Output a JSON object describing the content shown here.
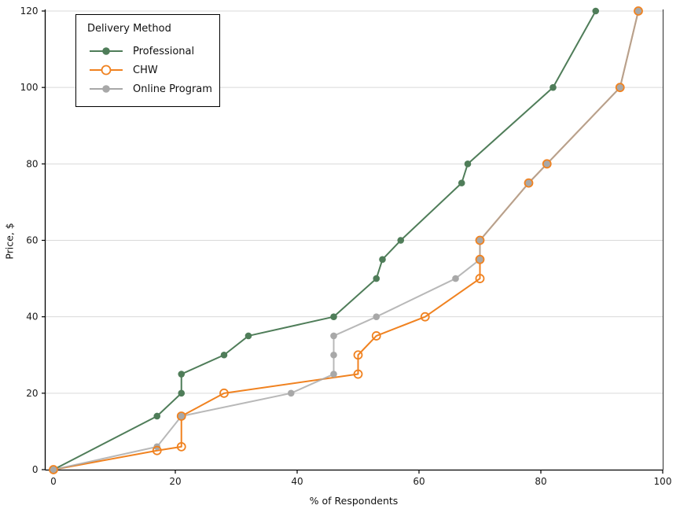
{
  "chart_data": {
    "type": "line",
    "xlabel": "% of Respondents",
    "ylabel": "Price, $",
    "xlim": [
      0,
      100
    ],
    "ylim": [
      0,
      120
    ],
    "x_ticks": [
      0,
      20,
      40,
      60,
      80,
      100
    ],
    "y_ticks": [
      0,
      20,
      40,
      60,
      80,
      100,
      120
    ],
    "grid": "horizontal",
    "legend_title": "Delivery Method",
    "legend_position": "upper left",
    "colors": {
      "grid": "#d9d9d9",
      "axis": "#000000",
      "tick_label": "#1a1a1a",
      "background": "#ffffff"
    },
    "series": [
      {
        "name": "Professional",
        "color": "#4f7d59",
        "marker": "filled",
        "points": [
          [
            0,
            0
          ],
          [
            17,
            14
          ],
          [
            21,
            20
          ],
          [
            21,
            25
          ],
          [
            28,
            30
          ],
          [
            32,
            35
          ],
          [
            46,
            40
          ],
          [
            53,
            50
          ],
          [
            54,
            55
          ],
          [
            57,
            60
          ],
          [
            67,
            75
          ],
          [
            68,
            80
          ],
          [
            82,
            100
          ],
          [
            89,
            120
          ]
        ]
      },
      {
        "name": "CHW",
        "color": "#f08220",
        "marker": "open",
        "points": [
          [
            0,
            0
          ],
          [
            17,
            5
          ],
          [
            21,
            6
          ],
          [
            21,
            14
          ],
          [
            28,
            20
          ],
          [
            50,
            25
          ],
          [
            50,
            30
          ],
          [
            53,
            35
          ],
          [
            61,
            40
          ],
          [
            70,
            50
          ],
          [
            70,
            55
          ],
          [
            70,
            60
          ],
          [
            78,
            75
          ],
          [
            81,
            80
          ],
          [
            93,
            100
          ],
          [
            96,
            120
          ]
        ]
      },
      {
        "name": "Online Program",
        "color": "#a8a8a8",
        "marker": "filled",
        "points": [
          [
            0,
            0
          ],
          [
            17,
            6
          ],
          [
            21,
            14
          ],
          [
            39,
            20
          ],
          [
            46,
            25
          ],
          [
            46,
            30
          ],
          [
            46,
            35
          ],
          [
            53,
            40
          ],
          [
            66,
            50
          ],
          [
            70,
            55
          ],
          [
            70,
            60
          ],
          [
            78,
            75
          ],
          [
            81,
            80
          ],
          [
            93,
            100
          ],
          [
            96,
            120
          ]
        ]
      }
    ]
  }
}
